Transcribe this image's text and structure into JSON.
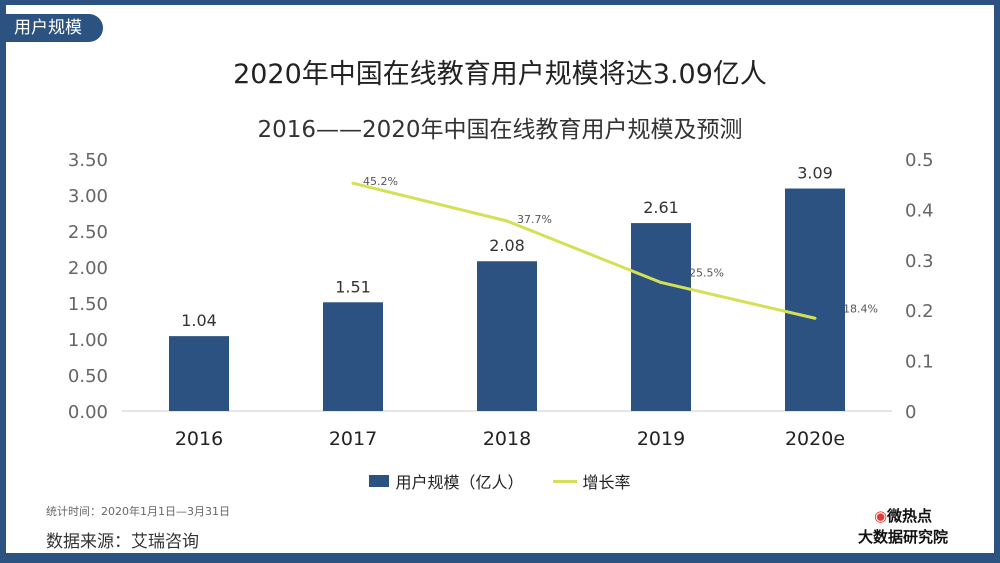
{
  "tag": "用户规模",
  "title": "2020年中国在线教育用户规模将达3.09亿人",
  "subtitle": "2016——2020年中国在线教育用户规模及预测",
  "colors": {
    "bar": "#2c5282",
    "line": "#d4e157"
  },
  "chart_data": {
    "type": "bar",
    "categories": [
      "2016",
      "2017",
      "2018",
      "2019",
      "2020e"
    ],
    "series": [
      {
        "name": "用户规模（亿人）",
        "type": "bar",
        "axis": "left",
        "values": [
          1.04,
          1.51,
          2.08,
          2.61,
          3.09
        ],
        "labels": [
          "1.04",
          "1.51",
          "2.08",
          "2.61",
          "3.09"
        ]
      },
      {
        "name": "增长率",
        "type": "line",
        "axis": "right",
        "values": [
          null,
          0.452,
          0.377,
          0.255,
          0.184
        ],
        "labels": [
          "",
          "45.2%",
          "37.7%",
          "25.5%",
          "18.4%"
        ]
      }
    ],
    "ylim": [
      0,
      3.5
    ],
    "yticks": [
      "0.00",
      "0.50",
      "1.00",
      "1.50",
      "2.00",
      "2.50",
      "3.00",
      "3.50"
    ],
    "y2lim": [
      0,
      0.5
    ],
    "y2ticks": [
      "0",
      "0.1",
      "0.2",
      "0.3",
      "0.4",
      "0.5"
    ],
    "legend": "bottom"
  },
  "footer": {
    "stat": "统计时间：2020年1月1日—3月31日",
    "source": "数据来源：艾瑞咨询",
    "logo_top": "微热点",
    "logo_bottom": "大数据研究院"
  }
}
